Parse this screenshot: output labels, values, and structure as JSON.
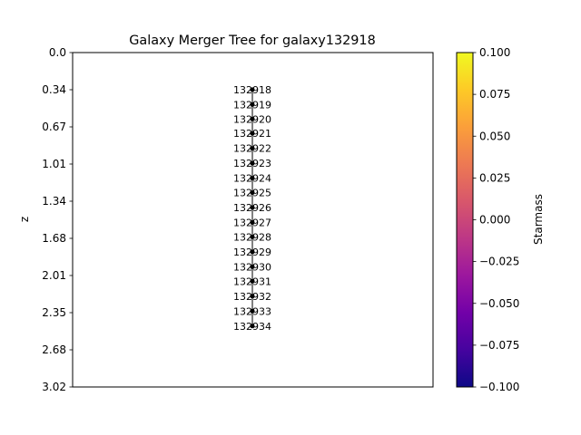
{
  "chart_data": {
    "type": "scatter",
    "title": "Galaxy Merger Tree for galaxy132918",
    "xlabel": "",
    "ylabel": "z",
    "y_inverted": true,
    "ylim": [
      0.0,
      3.02
    ],
    "yticks": [
      "0.0",
      "0.34",
      "0.67",
      "1.01",
      "1.34",
      "1.68",
      "2.01",
      "2.35",
      "2.68",
      "3.02"
    ],
    "xticks": [],
    "grid": false,
    "nodes": [
      {
        "label": "132918",
        "z": 0.335
      },
      {
        "label": "132919",
        "z": 0.47
      },
      {
        "label": "132920",
        "z": 0.6
      },
      {
        "label": "132921",
        "z": 0.73
      },
      {
        "label": "132922",
        "z": 0.865
      },
      {
        "label": "132923",
        "z": 1.0
      },
      {
        "label": "132924",
        "z": 1.135
      },
      {
        "label": "132925",
        "z": 1.265
      },
      {
        "label": "132926",
        "z": 1.4
      },
      {
        "label": "132927",
        "z": 1.535
      },
      {
        "label": "132928",
        "z": 1.665
      },
      {
        "label": "132929",
        "z": 1.8
      },
      {
        "label": "132930",
        "z": 1.935
      },
      {
        "label": "132931",
        "z": 2.065
      },
      {
        "label": "132932",
        "z": 2.2
      },
      {
        "label": "132933",
        "z": 2.335
      },
      {
        "label": "132934",
        "z": 2.47
      }
    ],
    "colorbar": {
      "label": "Starmass",
      "range": [
        -0.1,
        0.1
      ],
      "ticks": [
        "0.100",
        "0.075",
        "0.050",
        "0.025",
        "0.000",
        "−0.025",
        "−0.050",
        "−0.075",
        "−0.100"
      ],
      "colormap": [
        "#0d0887",
        "#46039f",
        "#7201a8",
        "#9c179e",
        "#bd3786",
        "#d8576b",
        "#ed7953",
        "#fb9f3a",
        "#fdca26",
        "#f0f921"
      ]
    },
    "marker_color": "#000000",
    "link_color": "#000000"
  }
}
